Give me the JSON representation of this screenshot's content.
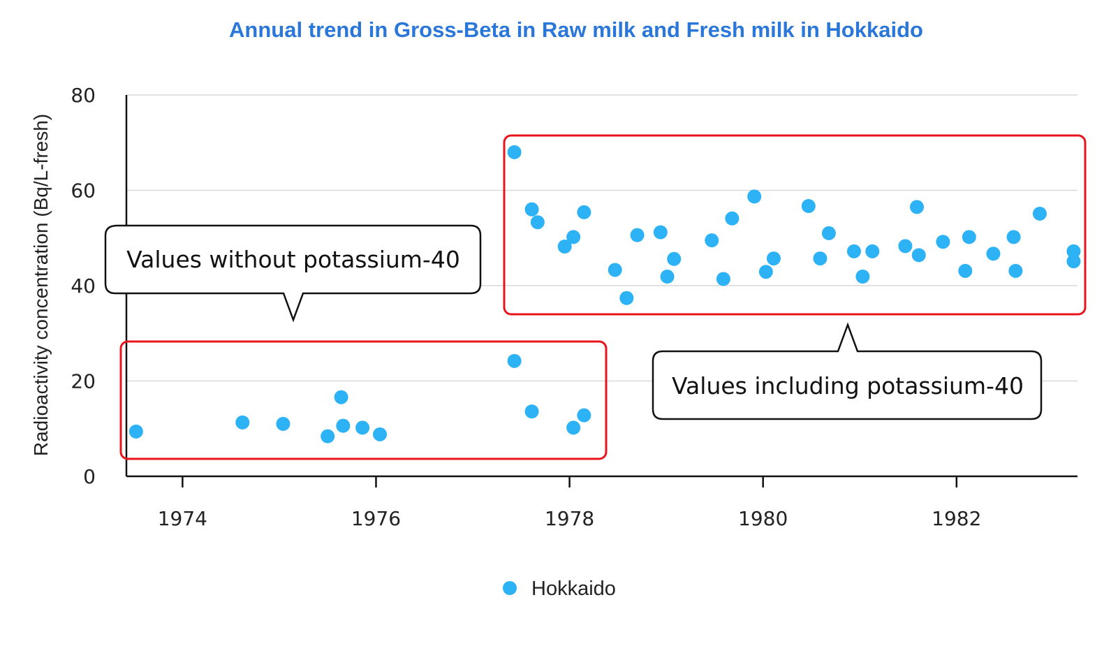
{
  "chart_data": {
    "type": "scatter",
    "title": "Annual trend in Gross-Beta in Raw milk and Fresh milk in Hokkaido",
    "xlabel": "",
    "ylabel": "Radioactivity concentration (Bq/L-fresh)",
    "xlim": [
      1973.42,
      1983.25
    ],
    "ylim": [
      0,
      80
    ],
    "x_ticks": [
      "1974",
      "1976",
      "1978",
      "1980",
      "1982"
    ],
    "y_ticks": [
      "0",
      "20",
      "40",
      "60",
      "80"
    ],
    "grid": true,
    "legend_position": "bottom",
    "series": [
      {
        "name": "Hokkaido",
        "color": "#2db3f5",
        "x": [
          1973.52,
          1974.62,
          1975.04,
          1975.5,
          1975.64,
          1975.66,
          1975.86,
          1976.04,
          1977.43,
          1977.61,
          1978.04,
          1978.15,
          1977.43,
          1977.61,
          1977.67,
          1977.95,
          1978.04,
          1978.15,
          1978.47,
          1978.59,
          1978.7,
          1978.94,
          1979.01,
          1979.08,
          1979.47,
          1979.59,
          1979.68,
          1979.91,
          1980.03,
          1980.11,
          1980.47,
          1980.59,
          1980.68,
          1980.94,
          1981.03,
          1981.13,
          1981.47,
          1981.59,
          1981.61,
          1981.86,
          1982.09,
          1982.13,
          1982.38,
          1982.59,
          1982.61,
          1982.86,
          1983.21,
          1983.21
        ],
        "y": [
          9.4,
          11.3,
          11.0,
          8.4,
          16.6,
          10.6,
          10.2,
          8.8,
          24.2,
          13.6,
          10.2,
          12.8,
          68.0,
          56.0,
          53.3,
          48.2,
          50.2,
          55.4,
          43.3,
          37.4,
          50.6,
          51.2,
          41.9,
          45.6,
          49.5,
          41.4,
          54.1,
          58.7,
          42.9,
          45.7,
          56.7,
          45.7,
          51.0,
          47.2,
          41.9,
          47.2,
          48.3,
          56.5,
          46.4,
          49.2,
          43.1,
          50.2,
          46.7,
          50.2,
          43.1,
          55.1,
          47.2,
          45.1
        ]
      }
    ],
    "annotations": [
      "Values without potassium-40",
      "Values including potassium-40"
    ]
  }
}
